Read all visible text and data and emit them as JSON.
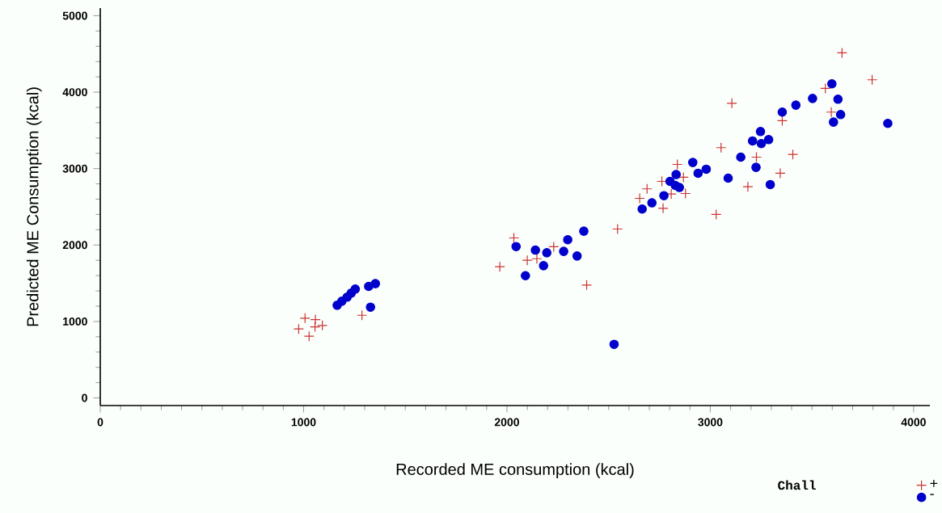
{
  "chart_data": {
    "type": "scatter",
    "xlabel": "Recorded ME consumption (kcal)",
    "ylabel": "Predicted ME Consumption (kcal)",
    "legend_title": "Chall",
    "legend": "bottom right",
    "xlim": [
      0,
      4080
    ],
    "ylim": [
      -100,
      5100
    ],
    "xticks": [
      0,
      1000,
      2000,
      3000,
      4000
    ],
    "yticks": [
      0,
      1000,
      2000,
      3000,
      4000,
      5000
    ],
    "series": [
      {
        "name": "+",
        "color": "#cc3333",
        "marker": "cross",
        "x": [
          1007,
          1058,
          976,
          1027,
          1056,
          1092,
          1287,
          2034,
          1965,
          2100,
          2147,
          2230,
          2392,
          2544,
          3106,
          3053,
          2838,
          2762,
          2689,
          2653,
          2768,
          2808,
          2868,
          2878,
          3029,
          3648,
          3796,
          3566,
          3595,
          3354,
          3227,
          3406,
          3344,
          3185
        ],
        "values": [
          1043,
          1025,
          902,
          807,
          930,
          948,
          1081,
          2093,
          1716,
          1800,
          1821,
          1977,
          1477,
          2209,
          3855,
          3274,
          3055,
          2833,
          2735,
          2611,
          2481,
          2668,
          2886,
          2674,
          2400,
          4514,
          4162,
          4049,
          3739,
          3626,
          3150,
          3185,
          2939,
          2762
        ]
      },
      {
        "name": "-",
        "color": "#0000cc",
        "marker": "circle",
        "x": [
          1165,
          1188,
          1214,
          1234,
          1254,
          1320,
          1353,
          1329,
          2045,
          2091,
          2140,
          2180,
          2196,
          2279,
          2299,
          2345,
          2378,
          2527,
          2665,
          2713,
          2772,
          2802,
          2832,
          2848,
          2828,
          2914,
          2940,
          2980,
          3088,
          3150,
          3225,
          3295,
          3208,
          3247,
          3287,
          3251,
          3354,
          3421,
          3503,
          3598,
          3628,
          3641,
          3606,
          3873
        ],
        "values": [
          1212,
          1265,
          1318,
          1371,
          1424,
          1459,
          1495,
          1187,
          1980,
          1599,
          1934,
          1730,
          1899,
          1917,
          2069,
          1857,
          2181,
          701,
          2471,
          2552,
          2646,
          2833,
          2922,
          2753,
          2780,
          3080,
          2939,
          2992,
          2875,
          3150,
          3016,
          2791,
          3362,
          3485,
          3379,
          3327,
          3739,
          3830,
          3918,
          4109,
          3908,
          3707,
          3608,
          3591
        ]
      }
    ]
  }
}
